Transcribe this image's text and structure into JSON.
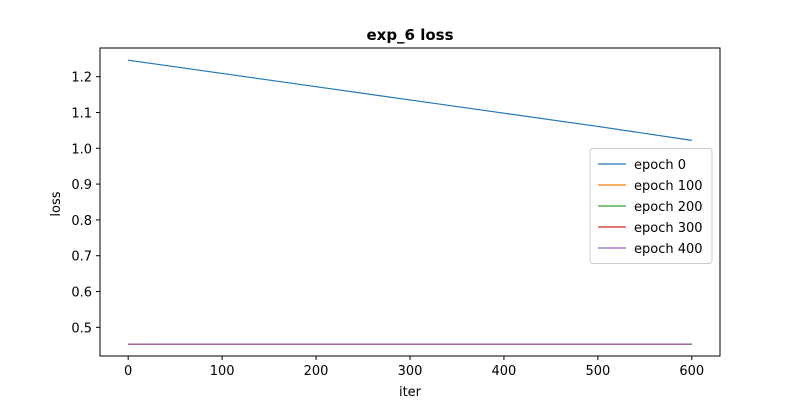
{
  "chart_data": {
    "type": "line",
    "title": "exp_6 loss",
    "xlabel": "iter",
    "ylabel": "loss",
    "xlim": [
      -30,
      630
    ],
    "ylim": [
      0.42,
      1.28
    ],
    "xticks": [
      0,
      100,
      200,
      300,
      400,
      500,
      600
    ],
    "yticks": [
      0.5,
      0.6,
      0.7,
      0.8,
      0.9,
      1.0,
      1.1,
      1.2
    ],
    "ytick_labels": [
      "0.5",
      "0.6",
      "0.7",
      "0.8",
      "0.9",
      "1.0",
      "1.1",
      "1.2"
    ],
    "grid": false,
    "legend_position": "center-right",
    "series": [
      {
        "name": "epoch 0",
        "color": "#1f77b4",
        "x": [
          0,
          100,
          200,
          300,
          400,
          500,
          600
        ],
        "y": [
          1.246,
          1.209,
          1.172,
          1.135,
          1.098,
          1.061,
          1.022
        ]
      },
      {
        "name": "epoch 100",
        "color": "#ff7f0e",
        "x": [
          0,
          100,
          200,
          300,
          400,
          500,
          600
        ],
        "y": [
          0.453,
          0.453,
          0.453,
          0.453,
          0.453,
          0.453,
          0.453
        ]
      },
      {
        "name": "epoch 200",
        "color": "#2ca02c",
        "x": [
          0,
          100,
          200,
          300,
          400,
          500,
          600
        ],
        "y": [
          0.453,
          0.453,
          0.453,
          0.453,
          0.453,
          0.453,
          0.453
        ]
      },
      {
        "name": "epoch 300",
        "color": "#d62728",
        "x": [
          0,
          100,
          200,
          300,
          400,
          500,
          600
        ],
        "y": [
          0.453,
          0.453,
          0.453,
          0.453,
          0.453,
          0.453,
          0.453
        ]
      },
      {
        "name": "epoch 400",
        "color": "#9467bd",
        "x": [
          0,
          100,
          200,
          300,
          400,
          500,
          600
        ],
        "y": [
          0.453,
          0.453,
          0.453,
          0.453,
          0.453,
          0.453,
          0.453
        ]
      }
    ]
  }
}
